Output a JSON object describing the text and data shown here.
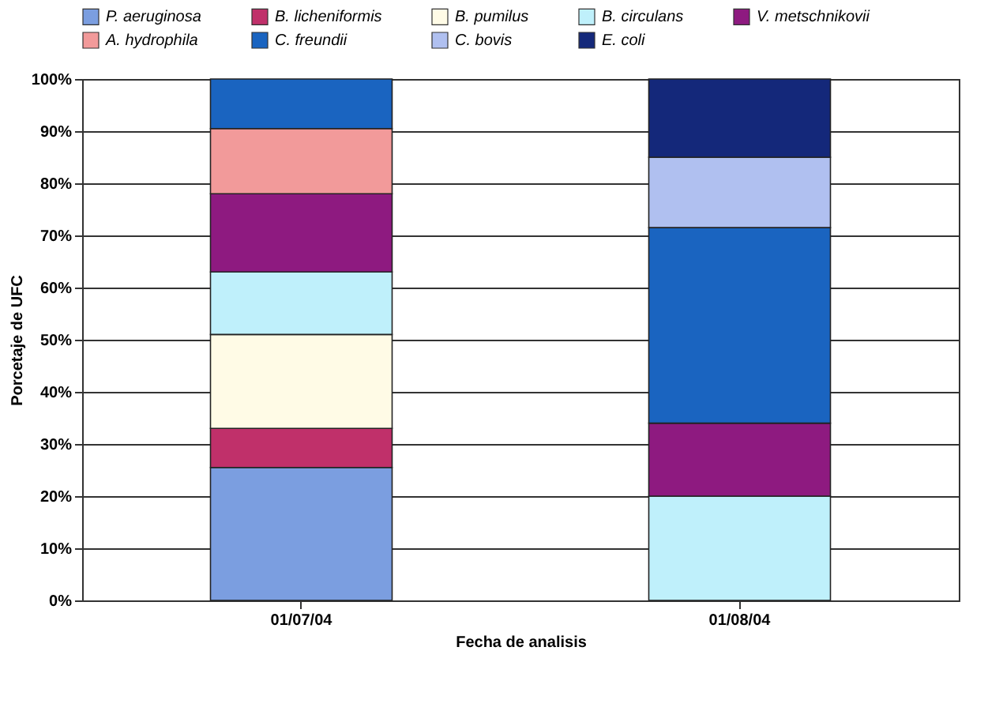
{
  "chart_data": {
    "type": "bar",
    "stacked": true,
    "xlabel": "Fecha de analisis",
    "ylabel": "Porcetaje de UFC",
    "categories": [
      "01/07/04",
      "01/08/04"
    ],
    "series": [
      {
        "name": "P. aeruginosa",
        "color": "#7b9ee0",
        "values": [
          25.5,
          null
        ]
      },
      {
        "name": "B. licheniformis",
        "color": "#c0306a",
        "values": [
          7.5,
          null
        ]
      },
      {
        "name": "B. pumilus",
        "color": "#fffbe6",
        "values": [
          18,
          null
        ]
      },
      {
        "name": "B. circulans",
        "color": "#bff0fb",
        "values": [
          12,
          20
        ]
      },
      {
        "name": "V. metschnikovii",
        "color": "#8e1a80",
        "values": [
          15,
          14
        ]
      },
      {
        "name": "A. hydrophila",
        "color": "#f29a9a",
        "values": [
          12.5,
          null
        ]
      },
      {
        "name": "C. freundii",
        "color": "#1a64c0",
        "values": [
          9.5,
          37.5
        ]
      },
      {
        "name": "C. bovis",
        "color": "#b0c0f0",
        "values": [
          null,
          13.5
        ]
      },
      {
        "name": "E. coli",
        "color": "#14287a",
        "values": [
          null,
          15
        ]
      }
    ],
    "ylim": [
      0,
      100
    ],
    "yticks": [
      {
        "value": 0,
        "label": "0%"
      },
      {
        "value": 10,
        "label": "10%"
      },
      {
        "value": 20,
        "label": "20%"
      },
      {
        "value": 30,
        "label": "30%"
      },
      {
        "value": 40,
        "label": "40%"
      },
      {
        "value": 50,
        "label": "50%"
      },
      {
        "value": 60,
        "label": "60%"
      },
      {
        "value": 70,
        "label": "70%"
      },
      {
        "value": 80,
        "label": "80%"
      },
      {
        "value": 90,
        "label": "90%"
      },
      {
        "value": 100,
        "label": "100%"
      }
    ],
    "grid": "y",
    "legend": "top"
  }
}
